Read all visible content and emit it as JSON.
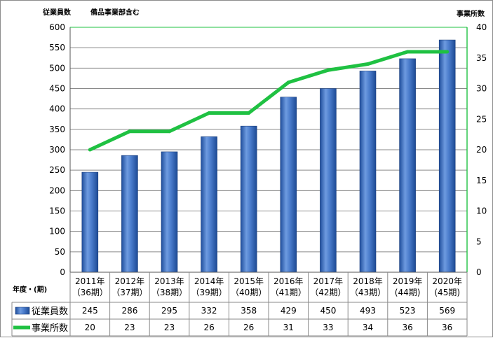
{
  "labels": {
    "left_axis": "従業員数",
    "note": "備品事業部含む",
    "right_axis": "事業所数",
    "category_axis": "年度・(期)"
  },
  "chart_data": {
    "type": "bar",
    "categories": [
      [
        "2011年",
        "（36期）"
      ],
      [
        "2012年",
        "（37期）"
      ],
      [
        "2013年",
        "（38期）"
      ],
      [
        "2014年",
        "（39期）"
      ],
      [
        "2015年",
        "（40期）"
      ],
      [
        "2016年",
        "（41期）"
      ],
      [
        "2017年",
        "（42期）"
      ],
      [
        "2018年",
        "（43期）"
      ],
      [
        "2019年",
        "(44期)"
      ],
      [
        "2020年",
        "(45期)"
      ]
    ],
    "series": [
      {
        "name": "従業員数",
        "type": "bar",
        "axis": "left",
        "values": [
          245,
          286,
          295,
          332,
          358,
          429,
          450,
          493,
          523,
          569
        ],
        "color": "#3f6fbf"
      },
      {
        "name": "事業所数",
        "type": "line",
        "axis": "right",
        "values": [
          20,
          23,
          23,
          26,
          26,
          31,
          33,
          34,
          36,
          36
        ],
        "color": "#1fc142"
      }
    ],
    "left_ylim": [
      0,
      600
    ],
    "left_ticks": [
      0,
      50,
      100,
      150,
      200,
      250,
      300,
      350,
      400,
      450,
      500,
      550,
      600
    ],
    "right_ylim": [
      0,
      40
    ],
    "right_ticks": [
      0,
      5,
      10,
      15,
      20,
      25,
      30,
      35,
      40
    ],
    "grid": true,
    "data_table": true
  }
}
